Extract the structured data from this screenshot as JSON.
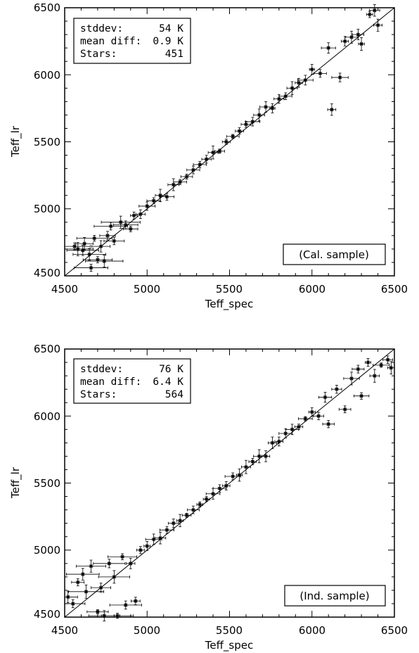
{
  "chart_data": [
    {
      "type": "scatter",
      "xlabel": "Teff_spec",
      "ylabel": "Teff_lr",
      "xlim": [
        4500,
        6500
      ],
      "ylim": [
        4500,
        6500
      ],
      "x_ticks": [
        "4500",
        "5000",
        "5500",
        "6000",
        "6500"
      ],
      "y_ticks": [
        "4500",
        "5000",
        "5500",
        "6000",
        "6500"
      ],
      "one_to_one_line": true,
      "error_bars": true,
      "stats_box": {
        "position": "top-left",
        "rows": [
          {
            "label": "stddev:",
            "value": "54 K"
          },
          {
            "label": "mean diff:",
            "value": "0.9 K"
          },
          {
            "label": "Stars:",
            "value": "451"
          }
        ]
      },
      "sample_label": {
        "position": "bottom-right",
        "text": "(Cal. sample)"
      },
      "summary": {
        "n_points": 451,
        "std_dev": 54,
        "mean_diff": 0.9
      },
      "points": [
        [
          4560,
          4720
        ],
        [
          4580,
          4700
        ],
        [
          4610,
          4690
        ],
        [
          4620,
          4740
        ],
        [
          4650,
          4660
        ],
        [
          4660,
          4560
        ],
        [
          4680,
          4780
        ],
        [
          4700,
          4620
        ],
        [
          4720,
          4720
        ],
        [
          4740,
          4610
        ],
        [
          4760,
          4800
        ],
        [
          4780,
          4870
        ],
        [
          4800,
          4760
        ],
        [
          4840,
          4900
        ],
        [
          4870,
          4880
        ],
        [
          4900,
          4850
        ],
        [
          4920,
          4950
        ],
        [
          4960,
          4960
        ],
        [
          5000,
          5020
        ],
        [
          5040,
          5060
        ],
        [
          5080,
          5100
        ],
        [
          5120,
          5090
        ],
        [
          5160,
          5180
        ],
        [
          5200,
          5200
        ],
        [
          5240,
          5240
        ],
        [
          5280,
          5290
        ],
        [
          5320,
          5330
        ],
        [
          5360,
          5370
        ],
        [
          5400,
          5420
        ],
        [
          5440,
          5430
        ],
        [
          5480,
          5500
        ],
        [
          5520,
          5540
        ],
        [
          5560,
          5580
        ],
        [
          5600,
          5630
        ],
        [
          5640,
          5650
        ],
        [
          5680,
          5700
        ],
        [
          5720,
          5760
        ],
        [
          5760,
          5750
        ],
        [
          5800,
          5820
        ],
        [
          5840,
          5840
        ],
        [
          5880,
          5900
        ],
        [
          5920,
          5940
        ],
        [
          5960,
          5960
        ],
        [
          6000,
          6040
        ],
        [
          6050,
          6010
        ],
        [
          6100,
          6200
        ],
        [
          6120,
          5740
        ],
        [
          6170,
          5980
        ],
        [
          6200,
          6250
        ],
        [
          6240,
          6280
        ],
        [
          6280,
          6300
        ],
        [
          6300,
          6230
        ],
        [
          6350,
          6450
        ],
        [
          6380,
          6480
        ],
        [
          6400,
          6370
        ]
      ]
    },
    {
      "type": "scatter",
      "xlabel": "Teff_spec",
      "ylabel": "Teff_lr",
      "xlim": [
        4500,
        6500
      ],
      "ylim": [
        4500,
        6500
      ],
      "x_ticks": [
        "4500",
        "5000",
        "5500",
        "6000",
        "6500"
      ],
      "y_ticks": [
        "4500",
        "5000",
        "5500",
        "6000",
        "6500"
      ],
      "one_to_one_line": true,
      "error_bars": true,
      "stats_box": {
        "position": "top-left",
        "rows": [
          {
            "label": "stddev:",
            "value": "76 K"
          },
          {
            "label": "mean diff:",
            "value": "6.4 K"
          },
          {
            "label": "Stars:",
            "value": "564"
          }
        ]
      },
      "sample_label": {
        "position": "bottom-right",
        "text": "(Ind. sample)"
      },
      "summary": {
        "n_points": 564,
        "std_dev": 76,
        "mean_diff": 6.4
      },
      "points": [
        [
          4520,
          4650
        ],
        [
          4550,
          4600
        ],
        [
          4580,
          4760
        ],
        [
          4610,
          4820
        ],
        [
          4630,
          4690
        ],
        [
          4660,
          4880
        ],
        [
          4700,
          4540
        ],
        [
          4720,
          4720
        ],
        [
          4740,
          4510
        ],
        [
          4770,
          4900
        ],
        [
          4800,
          4800
        ],
        [
          4820,
          4510
        ],
        [
          4850,
          4950
        ],
        [
          4870,
          4590
        ],
        [
          4900,
          4900
        ],
        [
          4930,
          4620
        ],
        [
          4960,
          5000
        ],
        [
          5000,
          5030
        ],
        [
          5040,
          5080
        ],
        [
          5080,
          5090
        ],
        [
          5120,
          5150
        ],
        [
          5160,
          5200
        ],
        [
          5200,
          5220
        ],
        [
          5240,
          5260
        ],
        [
          5280,
          5300
        ],
        [
          5320,
          5340
        ],
        [
          5360,
          5380
        ],
        [
          5400,
          5420
        ],
        [
          5440,
          5460
        ],
        [
          5480,
          5480
        ],
        [
          5520,
          5550
        ],
        [
          5560,
          5560
        ],
        [
          5600,
          5620
        ],
        [
          5640,
          5660
        ],
        [
          5680,
          5700
        ],
        [
          5720,
          5700
        ],
        [
          5760,
          5800
        ],
        [
          5800,
          5810
        ],
        [
          5840,
          5870
        ],
        [
          5880,
          5900
        ],
        [
          5920,
          5920
        ],
        [
          5960,
          5980
        ],
        [
          6000,
          6030
        ],
        [
          6040,
          6000
        ],
        [
          6080,
          6140
        ],
        [
          6100,
          5940
        ],
        [
          6150,
          6200
        ],
        [
          6200,
          6050
        ],
        [
          6240,
          6280
        ],
        [
          6280,
          6350
        ],
        [
          6300,
          6150
        ],
        [
          6340,
          6400
        ],
        [
          6380,
          6300
        ],
        [
          6420,
          6380
        ],
        [
          6460,
          6420
        ],
        [
          6480,
          6360
        ]
      ]
    }
  ]
}
